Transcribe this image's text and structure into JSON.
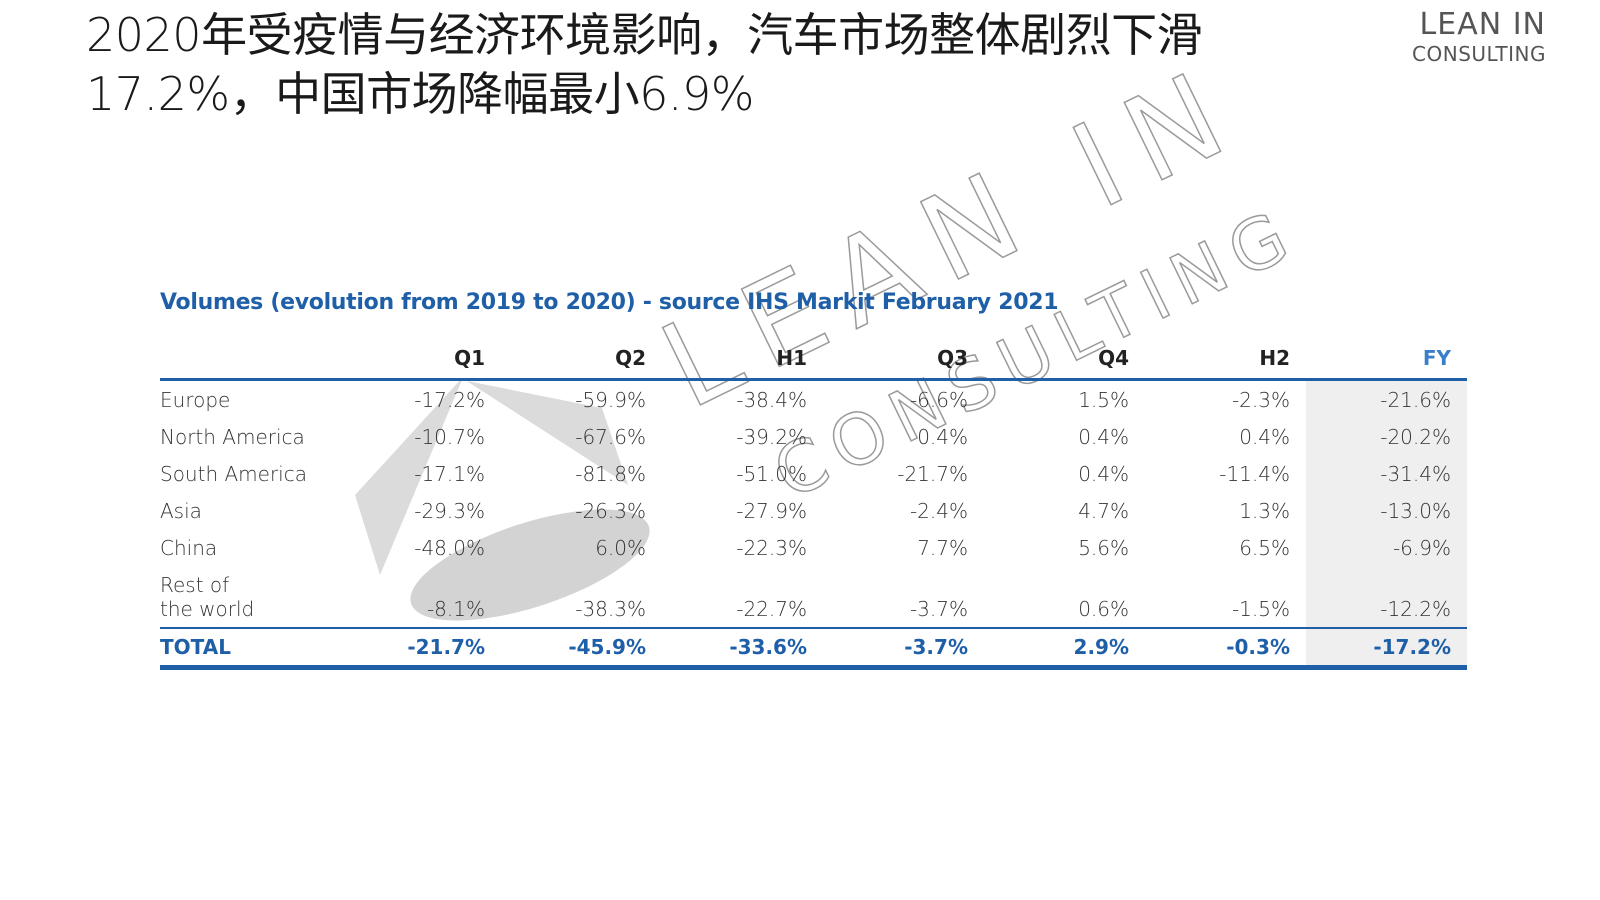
{
  "slide": {
    "title_line1": "2020年受疫情与经济环境影响，汽车市场整体剧烈下滑",
    "title_line2": "17.2%，中国市场降幅最小6.9%"
  },
  "logo": {
    "line1": "LEAN IN",
    "line2": "CONSULTING"
  },
  "watermark": {
    "line1": "LEAN IN",
    "line2": "CONSULTING"
  },
  "table": {
    "heading": "Volumes (evolution from 2019 to 2020) - source IHS Markit February 2021",
    "columns": [
      "",
      "Q1",
      "Q2",
      "H1",
      "Q3",
      "Q4",
      "H2",
      "FY"
    ],
    "rows": [
      {
        "label": "Europe",
        "values": [
          "-17.2%",
          "-59.9%",
          "-38.4%",
          "-6.6%",
          "1.5%",
          "-2.3%",
          "-21.6%"
        ]
      },
      {
        "label": "North America",
        "values": [
          "-10.7%",
          "-67.6%",
          "-39.2%",
          "0.4%",
          "0.4%",
          "0.4%",
          "-20.2%"
        ]
      },
      {
        "label": "South America",
        "values": [
          "-17.1%",
          "-81.8%",
          "-51.0%",
          "-21.7%",
          "0.4%",
          "-11.4%",
          "-31.4%"
        ]
      },
      {
        "label": "Asia",
        "values": [
          "-29.3%",
          "-26.3%",
          "-27.9%",
          "-2.4%",
          "4.7%",
          "1.3%",
          "-13.0%"
        ]
      },
      {
        "label": "China",
        "values": [
          "-48.0%",
          "6.0%",
          "-22.3%",
          "7.7%",
          "5.6%",
          "6.5%",
          "-6.9%"
        ]
      },
      {
        "label_line1": "Rest of",
        "label_line2": "the world",
        "values": [
          "-8.1%",
          "-38.3%",
          "-22.7%",
          "-3.7%",
          "0.6%",
          "-1.5%",
          "-12.2%"
        ]
      }
    ],
    "total": {
      "label": "TOTAL",
      "values": [
        "-21.7%",
        "-45.9%",
        "-33.6%",
        "-3.7%",
        "2.9%",
        "-0.3%",
        "-17.2%"
      ]
    }
  },
  "colors": {
    "accent_blue": "#1f5fa8",
    "fy_header": "#3a7fc9",
    "fy_column_bg": "#efefef"
  }
}
